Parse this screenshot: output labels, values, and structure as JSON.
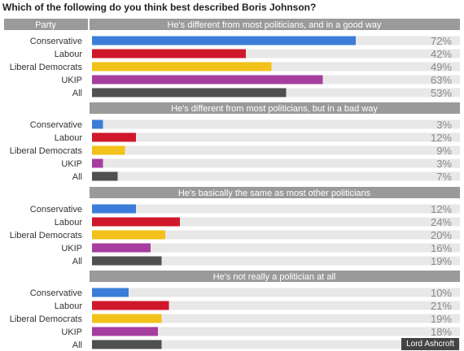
{
  "chart_data": {
    "type": "bar",
    "orientation": "horizontal",
    "title": "Which of the following do you think best described Boris Johnson?",
    "row_header": "Party",
    "categories": [
      "Conservative",
      "Labour",
      "Liberal Democrats",
      "UKIP",
      "All"
    ],
    "value_suffix": "%",
    "xlim": [
      0,
      100
    ],
    "grid": false,
    "legend": "none",
    "panels": [
      {
        "title": "He's different from most politicians, and in a good way",
        "values": [
          72,
          42,
          49,
          63,
          53
        ]
      },
      {
        "title": "He's different from most politicians, but in a bad way",
        "values": [
          3,
          12,
          9,
          3,
          7
        ]
      },
      {
        "title": "He's basically the same as most other politicians",
        "values": [
          12,
          24,
          20,
          16,
          19
        ]
      },
      {
        "title": "He's not really a politician at all",
        "values": [
          10,
          21,
          19,
          18,
          19
        ]
      }
    ],
    "colors": [
      "#3b7dd8",
      "#d0182b",
      "#f2c21a",
      "#a63ea0",
      "#505050"
    ],
    "header_color": "#9a9a9a",
    "track_color": "#e8e8e8"
  },
  "source": "Lord Ashcroft"
}
